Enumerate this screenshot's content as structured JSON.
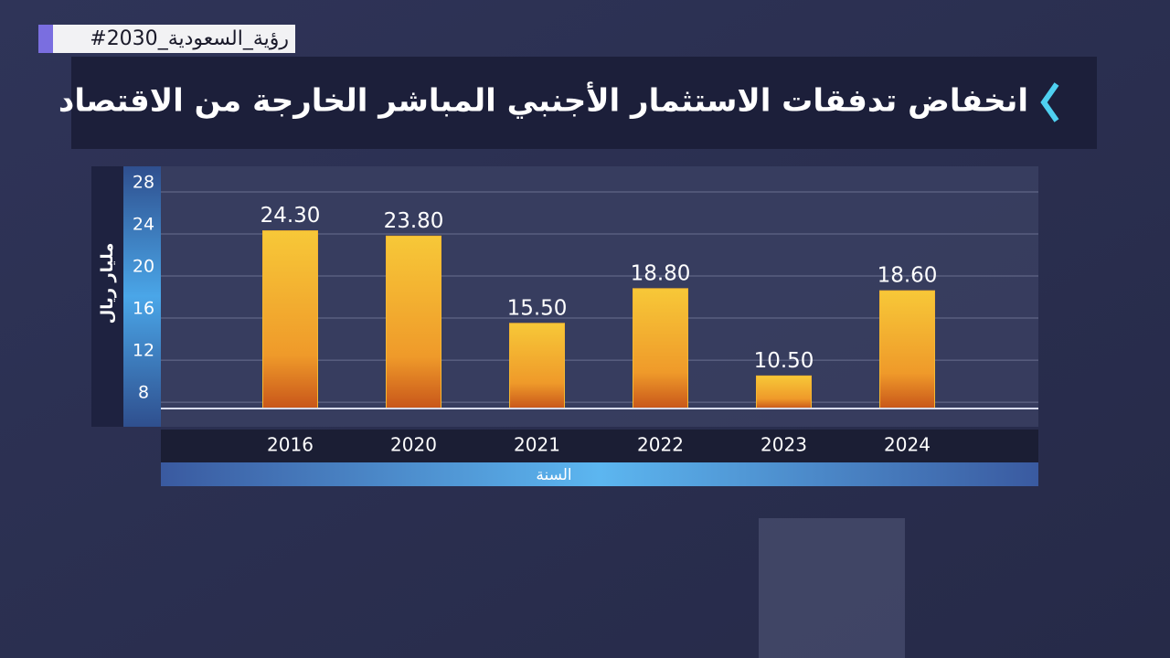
{
  "hashtag": "#رؤية_السعودية_2030",
  "chart_data": {
    "type": "bar",
    "title": "انخفاض تدفقات الاستثمار الأجنبي المباشر الخارجة من الاقتصاد",
    "x_label": "السنة",
    "y_label": "مليار ريال",
    "categories": [
      "2016",
      "2020",
      "2021",
      "2022",
      "2023",
      "2024"
    ],
    "values": [
      24.3,
      23.8,
      15.5,
      18.8,
      10.5,
      18.6
    ],
    "value_labels": [
      "24.30",
      "23.80",
      "15.50",
      "18.80",
      "10.50",
      "18.60"
    ],
    "color": "#f5b731",
    "ylim": [
      7.4,
      28
    ],
    "yticks": [
      8,
      12,
      16,
      20,
      24,
      28
    ],
    "grid": true
  }
}
